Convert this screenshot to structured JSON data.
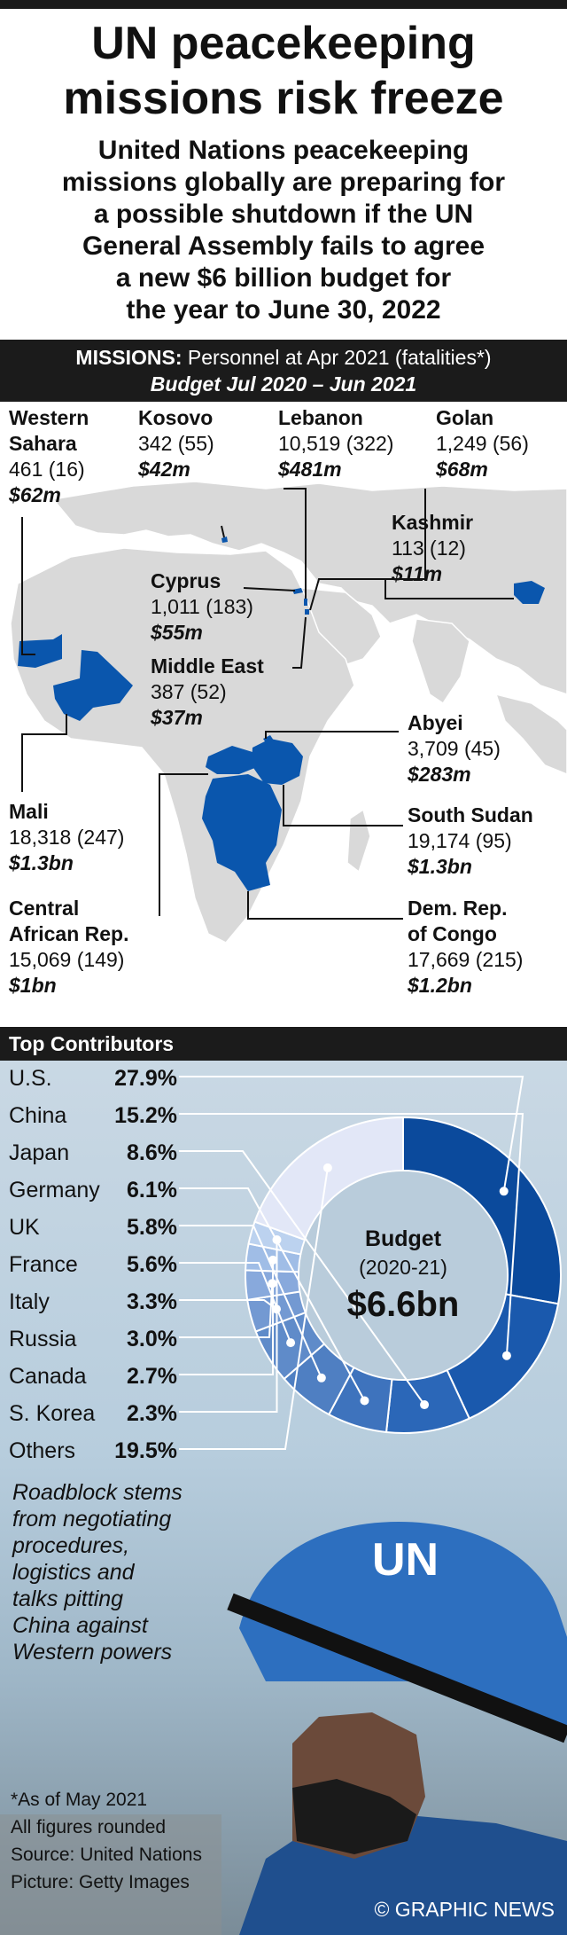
{
  "header": {
    "title_lines": [
      "UN peacekeeping",
      "missions risk freeze"
    ],
    "subtitle_lines": [
      "United Nations peacekeeping",
      "missions globally are preparing for",
      "a possible shutdown if the UN",
      "General Assembly fails to agree",
      "a new $6 billion budget for",
      "the year to June 30, 2022"
    ]
  },
  "missions_bar": {
    "key": "Missions:",
    "text": " Personnel at Apr 2021 (fatalities*)",
    "budget_line": "Budget Jul 2020 – Jun 2021"
  },
  "missions": [
    {
      "name_lines": [
        "Western",
        "Sahara"
      ],
      "stats": "461 (16)",
      "budget": "$62m"
    },
    {
      "name_lines": [
        "Kosovo"
      ],
      "stats": "342 (55)",
      "budget": "$42m"
    },
    {
      "name_lines": [
        "Lebanon"
      ],
      "stats": "10,519 (322)",
      "budget": "$481m"
    },
    {
      "name_lines": [
        "Golan"
      ],
      "stats": "1,249 (56)",
      "budget": "$68m"
    },
    {
      "name_lines": [
        "Kashmir"
      ],
      "stats": "113 (12)",
      "budget": "$11m"
    },
    {
      "name_lines": [
        "Cyprus"
      ],
      "stats": "1,011 (183)",
      "budget": "$55m"
    },
    {
      "name_lines": [
        "Middle East"
      ],
      "stats": "387 (52)",
      "budget": "$37m"
    },
    {
      "name_lines": [
        "Abyei"
      ],
      "stats": "3,709 (45)",
      "budget": "$283m"
    },
    {
      "name_lines": [
        "Mali"
      ],
      "stats": "18,318 (247)",
      "budget": "$1.3bn"
    },
    {
      "name_lines": [
        "South Sudan"
      ],
      "stats": "19,174 (95)",
      "budget": "$1.3bn"
    },
    {
      "name_lines": [
        "Central",
        "African Rep."
      ],
      "stats": "15,069 (149)",
      "budget": "$1bn"
    },
    {
      "name_lines": [
        "Dem. Rep.",
        "of Congo"
      ],
      "stats": "17,669 (215)",
      "budget": "$1.2bn"
    }
  ],
  "contributors_bar": "Top Contributors",
  "chart_data": {
    "type": "pie",
    "categories": [
      "U.S.",
      "China",
      "Japan",
      "Germany",
      "UK",
      "France",
      "Italy",
      "Russia",
      "Canada",
      "S. Korea",
      "Others"
    ],
    "values": [
      27.9,
      15.2,
      8.6,
      6.1,
      5.8,
      5.6,
      3.3,
      3.0,
      2.7,
      2.3,
      19.5
    ],
    "value_labels": [
      "27.9%",
      "15.2%",
      "8.6%",
      "6.1%",
      "5.8%",
      "5.6%",
      "3.3%",
      "3.0%",
      "2.7%",
      "2.3%",
      "19.5%"
    ],
    "colors": [
      "#0b4a9c",
      "#1a59ad",
      "#2b67b8",
      "#3e73bd",
      "#4f7fc2",
      "#5f8bc9",
      "#7399d2",
      "#88a9dc",
      "#a0bde6",
      "#bcd2ef",
      "#e2e7f7"
    ],
    "center_title": "Budget",
    "center_years": "(2020-21)",
    "center_value": "$6.6bn",
    "legend": "left"
  },
  "quote_lines": [
    "Roadblock stems",
    "from negotiating",
    "procedures,",
    "logistics and",
    "talks pitting",
    "China against",
    "Western powers"
  ],
  "helmet_text": "UN",
  "footer": {
    "lines": [
      "*As of May 2021",
      "All figures rounded",
      "Source: United Nations",
      "Picture: Getty Images"
    ],
    "credit": "© GRAPHIC NEWS"
  },
  "colors": {
    "mission_blue": "#0a56ad",
    "land": "#d9d9d9",
    "sea": "#ffffff",
    "bar": "#1b1b1b"
  }
}
